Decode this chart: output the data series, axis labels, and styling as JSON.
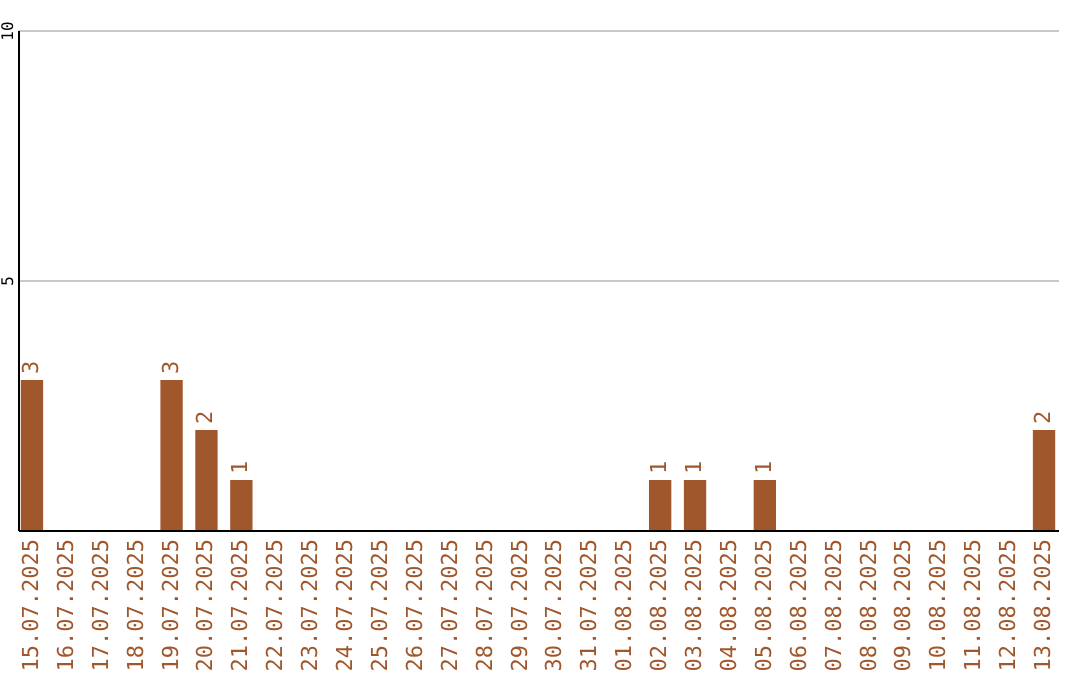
{
  "chart_data": {
    "type": "bar",
    "categories": [
      "15.07.2025",
      "16.07.2025",
      "17.07.2025",
      "18.07.2025",
      "19.07.2025",
      "20.07.2025",
      "21.07.2025",
      "22.07.2025",
      "23.07.2025",
      "24.07.2025",
      "25.07.2025",
      "26.07.2025",
      "27.07.2025",
      "28.07.2025",
      "29.07.2025",
      "30.07.2025",
      "31.07.2025",
      "01.08.2025",
      "02.08.2025",
      "03.08.2025",
      "04.08.2025",
      "05.08.2025",
      "06.08.2025",
      "07.08.2025",
      "08.08.2025",
      "09.08.2025",
      "10.08.2025",
      "11.08.2025",
      "12.08.2025",
      "13.08.2025"
    ],
    "values": [
      3,
      0,
      0,
      0,
      3,
      2,
      1,
      0,
      0,
      0,
      0,
      0,
      0,
      0,
      0,
      0,
      0,
      0,
      1,
      1,
      0,
      1,
      0,
      0,
      0,
      0,
      0,
      0,
      0,
      2
    ],
    "value_labels": [
      "3",
      null,
      null,
      null,
      "3",
      "2",
      "1",
      null,
      null,
      null,
      null,
      null,
      null,
      null,
      null,
      null,
      null,
      null,
      "1",
      "1",
      null,
      "1",
      null,
      null,
      null,
      null,
      null,
      null,
      null,
      "2"
    ],
    "color": "#a0572b",
    "ylim": [
      0,
      10
    ],
    "yticks": [
      {
        "value": 0,
        "label": null
      },
      5,
      10
    ],
    "grid": "y"
  }
}
